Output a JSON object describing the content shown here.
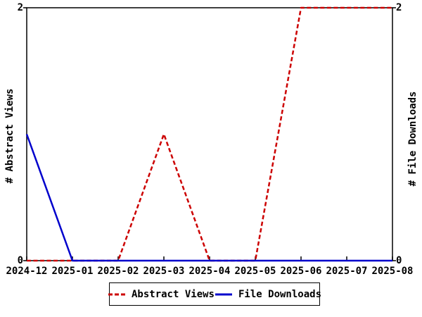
{
  "chart_data": {
    "type": "line",
    "title": "",
    "xlabel": "",
    "ylabel_left": "# Abstract Views",
    "ylabel_right": "# File Downloads",
    "x": [
      "2024-12",
      "2025-01",
      "2025-02",
      "2025-03",
      "2025-04",
      "2025-05",
      "2025-06",
      "2025-07",
      "2025-08"
    ],
    "series": [
      {
        "name": "Abstract Views",
        "color": "#cc0000",
        "style": "dashed",
        "values": [
          0,
          0,
          0,
          1,
          0,
          0,
          2,
          2,
          2
        ]
      },
      {
        "name": "File Downloads",
        "color": "#0000cc",
        "style": "solid",
        "values": [
          1,
          0,
          0,
          0,
          0,
          0,
          0,
          0,
          0
        ]
      }
    ],
    "ylim": [
      0,
      2
    ],
    "yticks": [
      0,
      2
    ],
    "grid": false,
    "legend_position": "bottom-center",
    "axis_color": "#000000",
    "background_color": "#ffffff"
  }
}
